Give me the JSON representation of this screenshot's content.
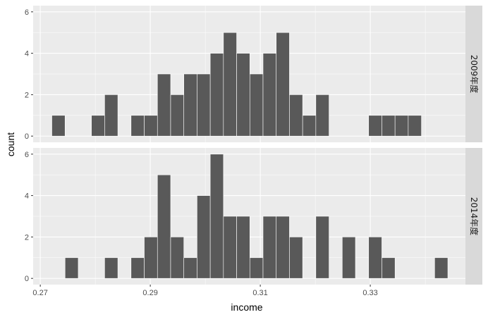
{
  "chart_data": {
    "type": "bar",
    "subtype": "histogram",
    "faceting": "rows",
    "xlabel": "income",
    "ylabel": "count",
    "xlim": [
      0.2687,
      0.3473
    ],
    "ylim": [
      -0.3,
      6.3
    ],
    "x_ticks": [
      0.27,
      0.29,
      0.31,
      0.33
    ],
    "x_tick_labels": [
      "0.27",
      "0.29",
      "0.31",
      "0.33"
    ],
    "y_ticks": [
      0,
      2,
      4,
      6
    ],
    "y_tick_labels": [
      "0",
      "2",
      "4",
      "6"
    ],
    "bin_width": 0.0024,
    "bar_color": "#595959",
    "bar_edge_color": "#ffffff",
    "panel_background": "#ebebeb",
    "strip_background": "#d9d9d9",
    "grid": true,
    "panels": [
      {
        "label": "2009年度",
        "bins": [
          {
            "x": 0.2733,
            "count": 1
          },
          {
            "x": 0.2805,
            "count": 1
          },
          {
            "x": 0.2829,
            "count": 2
          },
          {
            "x": 0.2877,
            "count": 1
          },
          {
            "x": 0.2901,
            "count": 1
          },
          {
            "x": 0.2925,
            "count": 3
          },
          {
            "x": 0.2949,
            "count": 2
          },
          {
            "x": 0.2973,
            "count": 3
          },
          {
            "x": 0.2997,
            "count": 3
          },
          {
            "x": 0.3021,
            "count": 4
          },
          {
            "x": 0.3045,
            "count": 5
          },
          {
            "x": 0.3069,
            "count": 4
          },
          {
            "x": 0.3093,
            "count": 3
          },
          {
            "x": 0.3117,
            "count": 4
          },
          {
            "x": 0.3141,
            "count": 5
          },
          {
            "x": 0.3165,
            "count": 2
          },
          {
            "x": 0.3189,
            "count": 1
          },
          {
            "x": 0.3213,
            "count": 2
          },
          {
            "x": 0.3309,
            "count": 1
          },
          {
            "x": 0.3333,
            "count": 1
          },
          {
            "x": 0.3357,
            "count": 1
          },
          {
            "x": 0.3381,
            "count": 1
          }
        ]
      },
      {
        "label": "2014年度",
        "bins": [
          {
            "x": 0.2757,
            "count": 1
          },
          {
            "x": 0.2829,
            "count": 1
          },
          {
            "x": 0.2877,
            "count": 1
          },
          {
            "x": 0.2901,
            "count": 2
          },
          {
            "x": 0.2925,
            "count": 5
          },
          {
            "x": 0.2949,
            "count": 2
          },
          {
            "x": 0.2973,
            "count": 1
          },
          {
            "x": 0.2997,
            "count": 4
          },
          {
            "x": 0.3021,
            "count": 6
          },
          {
            "x": 0.3045,
            "count": 3
          },
          {
            "x": 0.3069,
            "count": 3
          },
          {
            "x": 0.3093,
            "count": 1
          },
          {
            "x": 0.3117,
            "count": 3
          },
          {
            "x": 0.3141,
            "count": 3
          },
          {
            "x": 0.3165,
            "count": 2
          },
          {
            "x": 0.3213,
            "count": 3
          },
          {
            "x": 0.3261,
            "count": 2
          },
          {
            "x": 0.3309,
            "count": 2
          },
          {
            "x": 0.3333,
            "count": 1
          },
          {
            "x": 0.3429,
            "count": 1
          }
        ]
      }
    ]
  }
}
